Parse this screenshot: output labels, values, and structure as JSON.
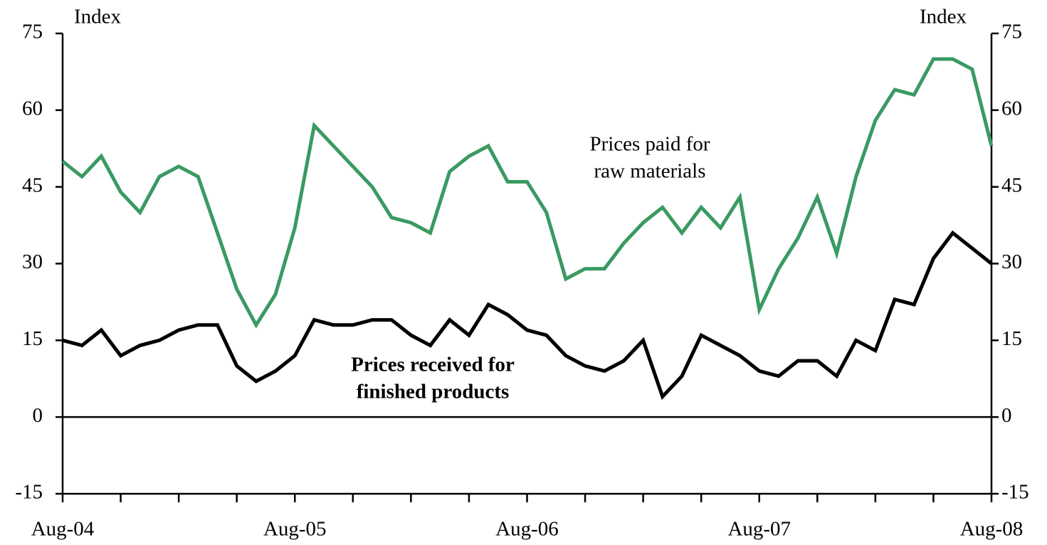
{
  "chart_data": {
    "type": "line",
    "y_label": "Index",
    "y2_label": "Index",
    "categories": [
      "Aug-04",
      null,
      null,
      null,
      null,
      null,
      null,
      null,
      null,
      null,
      null,
      null,
      "Aug-05",
      null,
      null,
      null,
      null,
      null,
      null,
      null,
      null,
      null,
      null,
      null,
      "Aug-06",
      null,
      null,
      null,
      null,
      null,
      null,
      null,
      null,
      null,
      null,
      null,
      "Aug-07",
      null,
      null,
      null,
      null,
      null,
      null,
      null,
      null,
      null,
      null,
      null,
      "Aug-08"
    ],
    "series": [
      {
        "name_lines": [
          "Prices paid for",
          "raw materials"
        ],
        "color": "#3a9a62",
        "bold": false,
        "values": [
          50,
          47,
          51,
          44,
          40,
          47,
          49,
          47,
          36,
          25,
          18,
          24,
          37,
          57,
          53,
          49,
          45,
          39,
          38,
          36,
          48,
          51,
          53,
          46,
          46,
          40,
          27,
          29,
          29,
          34,
          38,
          41,
          36,
          41,
          37,
          43,
          21,
          29,
          35,
          43,
          32,
          47,
          58,
          64,
          63,
          70,
          70,
          68,
          53
        ]
      },
      {
        "name_lines": [
          "Prices received for",
          "finished products"
        ],
        "color": "#000000",
        "bold": true,
        "values": [
          15,
          14,
          17,
          12,
          14,
          15,
          17,
          18,
          18,
          10,
          7,
          9,
          12,
          19,
          18,
          18,
          19,
          19,
          16,
          14,
          19,
          16,
          22,
          20,
          17,
          16,
          12,
          10,
          9,
          11,
          15,
          4,
          8,
          16,
          14,
          12,
          9,
          8,
          11,
          11,
          8,
          15,
          13,
          23,
          22,
          31,
          36,
          33,
          30
        ]
      }
    ],
    "ylim": [
      -15,
      75
    ],
    "yticks": [
      -15,
      0,
      15,
      30,
      45,
      60,
      75
    ],
    "y2lim": [
      -15,
      75
    ],
    "y2ticks": [
      -15,
      0,
      15,
      30,
      45,
      60,
      75
    ],
    "zero_line": true
  }
}
